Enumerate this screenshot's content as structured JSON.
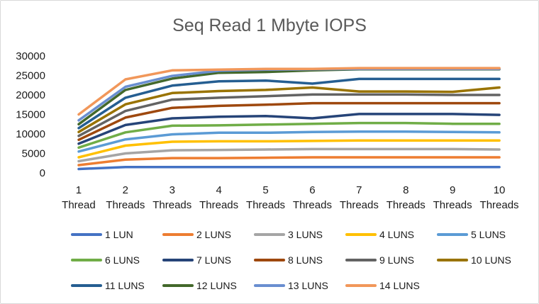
{
  "chart_data": {
    "type": "line",
    "title": "Seq Read 1 Mbyte IOPS",
    "xlabel": "",
    "ylabel": "",
    "categories": [
      "1 Thread",
      "2 Threads",
      "3 Threads",
      "4 Threads",
      "5 Threads",
      "6 Threads",
      "7 Threads",
      "8 Threads",
      "9 Threads",
      "10 Threads"
    ],
    "category_lines": [
      [
        "1",
        "Thread"
      ],
      [
        "2",
        "Threads"
      ],
      [
        "3",
        "Threads"
      ],
      [
        "4",
        "Threads"
      ],
      [
        "5",
        "Threads"
      ],
      [
        "6",
        "Threads"
      ],
      [
        "7",
        "Threads"
      ],
      [
        "8",
        "Threads"
      ],
      [
        "9",
        "Threads"
      ],
      [
        "10",
        "Threads"
      ]
    ],
    "ylim": [
      0,
      30000
    ],
    "yticks": [
      0,
      5000,
      10000,
      15000,
      20000,
      25000,
      30000
    ],
    "grid": false,
    "legend_position": "bottom",
    "series": [
      {
        "name": "1 LUN",
        "color": "#4472C4",
        "values": [
          1000,
          1500,
          1500,
          1500,
          1500,
          1500,
          1500,
          1500,
          1500,
          1500
        ]
      },
      {
        "name": "2 LUNS",
        "color": "#ED7D31",
        "values": [
          2000,
          3400,
          3800,
          3800,
          3900,
          4000,
          4000,
          4000,
          4000,
          4000
        ]
      },
      {
        "name": "3 LUNS",
        "color": "#A5A5A5",
        "values": [
          3000,
          5000,
          5800,
          5900,
          6000,
          6100,
          6100,
          6100,
          6100,
          6000
        ]
      },
      {
        "name": "4 LUNS",
        "color": "#FFC000",
        "values": [
          4000,
          7000,
          8000,
          8100,
          8100,
          8200,
          8300,
          8300,
          8300,
          8300
        ]
      },
      {
        "name": "5 LUNS",
        "color": "#5B9BD5",
        "values": [
          5500,
          8600,
          9900,
          10300,
          10300,
          10500,
          10600,
          10600,
          10500,
          10400
        ]
      },
      {
        "name": "6 LUNS",
        "color": "#70AD47",
        "values": [
          6500,
          10400,
          12100,
          12200,
          12400,
          12600,
          12800,
          12800,
          12600,
          12600
        ]
      },
      {
        "name": "7 LUNS",
        "color": "#264478",
        "values": [
          7500,
          12300,
          14000,
          14400,
          14600,
          14000,
          15100,
          15100,
          15100,
          14900
        ]
      },
      {
        "name": "8 LUNS",
        "color": "#9E480E",
        "values": [
          8500,
          14200,
          16700,
          17200,
          17500,
          17900,
          17900,
          17900,
          17900,
          17900
        ]
      },
      {
        "name": "9 LUNS",
        "color": "#636363",
        "values": [
          9500,
          15900,
          18800,
          19300,
          19700,
          20100,
          20100,
          20100,
          20000,
          20000
        ]
      },
      {
        "name": "10 LUNS",
        "color": "#997300",
        "values": [
          10500,
          17600,
          20500,
          21000,
          21300,
          21900,
          20900,
          20900,
          20800,
          21900
        ]
      },
      {
        "name": "11 LUNS",
        "color": "#255E91",
        "values": [
          11500,
          19300,
          22400,
          23500,
          23700,
          22900,
          24100,
          24100,
          24100,
          24100
        ]
      },
      {
        "name": "12 LUNS",
        "color": "#43682B",
        "values": [
          12500,
          21300,
          24200,
          25700,
          25900,
          26300,
          26600,
          26600,
          26600,
          26600
        ]
      },
      {
        "name": "13 LUNS",
        "color": "#698ED0",
        "values": [
          13500,
          22100,
          24900,
          26200,
          26500,
          26600,
          26700,
          26700,
          26700,
          26700
        ]
      },
      {
        "name": "14 LUNS",
        "color": "#F1975A",
        "values": [
          15000,
          24000,
          26300,
          26500,
          26700,
          26700,
          26900,
          26900,
          26900,
          26900
        ]
      }
    ]
  }
}
